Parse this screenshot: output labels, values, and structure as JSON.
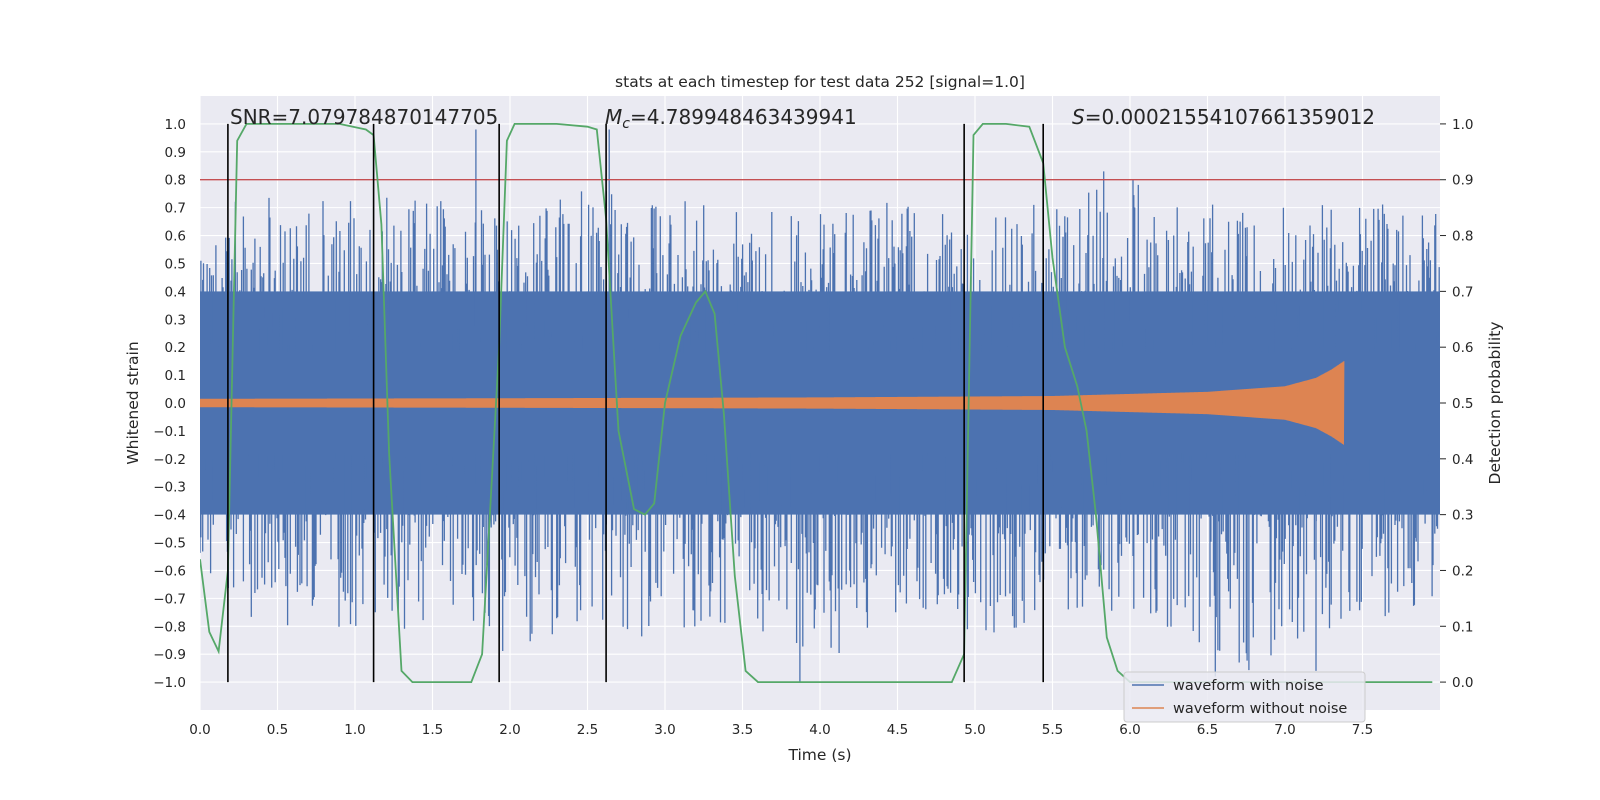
{
  "chart_data": {
    "type": "line",
    "title": "stats at each timestep for test data 252 [signal=1.0]",
    "xlabel": "Time (s)",
    "ylabel_left": "Whitened strain",
    "ylabel_right": "Detection probability",
    "xlim": [
      0.0,
      8.0
    ],
    "ylim_left": [
      -1.1,
      1.1
    ],
    "ylim_right": [
      -0.05,
      1.05
    ],
    "x_ticks": [
      "0.0",
      "0.5",
      "1.0",
      "1.5",
      "2.0",
      "2.5",
      "3.0",
      "3.5",
      "4.0",
      "4.5",
      "5.0",
      "5.5",
      "6.0",
      "6.5",
      "7.0",
      "7.5"
    ],
    "y_left_ticks": [
      "1.0",
      "0.9",
      "0.8",
      "0.7",
      "0.6",
      "0.5",
      "0.4",
      "0.3",
      "0.2",
      "0.1",
      "0.0",
      "−0.1",
      "−0.2",
      "−0.3",
      "−0.4",
      "−0.5",
      "−0.6",
      "−0.7",
      "−0.8",
      "−0.9",
      "−1.0"
    ],
    "y_right_ticks": [
      "1.0",
      "0.9",
      "0.8",
      "0.7",
      "0.6",
      "0.5",
      "0.4",
      "0.3",
      "0.2",
      "0.1",
      "0.0"
    ],
    "grid": true,
    "legend_position": "lower-right",
    "annotations": {
      "snr": "SNR=7.079784870147705",
      "mc_symbol": "M",
      "mc_sub": "c",
      "mc_value": "=4.789948463439941",
      "s_symbol": "S",
      "s_value": "=0.00021554107661359012"
    },
    "threshold": {
      "detection_probability": 0.9,
      "color": "#c44e52"
    },
    "event_markers_x": [
      0.18,
      1.12,
      1.93,
      2.62,
      4.93,
      5.44
    ],
    "series": [
      {
        "name": "waveform with noise",
        "color": "#4c72b0",
        "axis": "left",
        "envelope_x": [
          0.0,
          0.5,
          1.0,
          1.5,
          2.0,
          2.5,
          3.0,
          3.5,
          4.0,
          4.5,
          5.0,
          5.5,
          6.0,
          6.5,
          7.0,
          7.5,
          8.0
        ],
        "envelope_upper": [
          0.72,
          0.76,
          0.73,
          0.75,
          0.66,
          0.77,
          0.74,
          0.7,
          0.68,
          0.76,
          0.65,
          0.75,
          0.82,
          0.72,
          0.7,
          0.73,
          0.68
        ],
        "envelope_lower": [
          -0.7,
          -0.84,
          -0.8,
          -0.82,
          -0.9,
          -0.78,
          -0.87,
          -0.77,
          -0.98,
          -0.78,
          -0.84,
          -0.78,
          -0.74,
          -0.95,
          -0.98,
          -0.79,
          -0.72
        ],
        "peaks": [
          {
            "x": 1.78,
            "y": 0.98
          },
          {
            "x": 2.64,
            "y": 0.98
          },
          {
            "x": 5.83,
            "y": 0.83
          },
          {
            "x": 3.87,
            "y": -1.0
          },
          {
            "x": 6.55,
            "y": -0.98
          },
          {
            "x": 7.2,
            "y": -0.96
          }
        ]
      },
      {
        "name": "waveform without noise",
        "color": "#dd8452",
        "axis": "left",
        "amplitude_x": [
          0.0,
          2.0,
          4.0,
          5.5,
          6.5,
          7.0,
          7.2,
          7.3,
          7.38
        ],
        "amplitude": [
          0.015,
          0.017,
          0.02,
          0.025,
          0.04,
          0.06,
          0.09,
          0.12,
          0.15
        ],
        "end_x": 7.38
      },
      {
        "name": "",
        "color": "#55a868",
        "axis": "right",
        "x": [
          0.0,
          0.06,
          0.12,
          0.18,
          0.24,
          0.3,
          0.4,
          0.6,
          0.9,
          1.07,
          1.12,
          1.17,
          1.22,
          1.3,
          1.37,
          1.45,
          1.6,
          1.75,
          1.82,
          1.87,
          1.93,
          1.98,
          2.03,
          2.1,
          2.3,
          2.5,
          2.56,
          2.62,
          2.7,
          2.8,
          2.87,
          2.93,
          3.0,
          3.1,
          3.2,
          3.26,
          3.32,
          3.38,
          3.45,
          3.52,
          3.6,
          4.0,
          4.5,
          4.85,
          4.93,
          4.99,
          5.05,
          5.2,
          5.35,
          5.44,
          5.5,
          5.58,
          5.66,
          5.72,
          5.78,
          5.85,
          5.92,
          6.0,
          6.2,
          7.0,
          7.5,
          7.95
        ],
        "y": [
          0.22,
          0.09,
          0.055,
          0.2,
          0.97,
          1.0,
          1.0,
          1.0,
          1.0,
          0.99,
          0.98,
          0.82,
          0.41,
          0.02,
          0.0,
          0.0,
          0.0,
          0.0,
          0.05,
          0.3,
          0.6,
          0.97,
          1.0,
          1.0,
          1.0,
          0.995,
          0.99,
          0.83,
          0.45,
          0.31,
          0.3,
          0.32,
          0.5,
          0.62,
          0.68,
          0.7,
          0.66,
          0.48,
          0.19,
          0.02,
          0.0,
          0.0,
          0.0,
          0.0,
          0.05,
          0.98,
          1.0,
          1.0,
          0.995,
          0.93,
          0.76,
          0.6,
          0.53,
          0.45,
          0.3,
          0.08,
          0.02,
          0.0,
          0.0,
          0.0,
          0.0,
          0.0
        ]
      }
    ]
  }
}
